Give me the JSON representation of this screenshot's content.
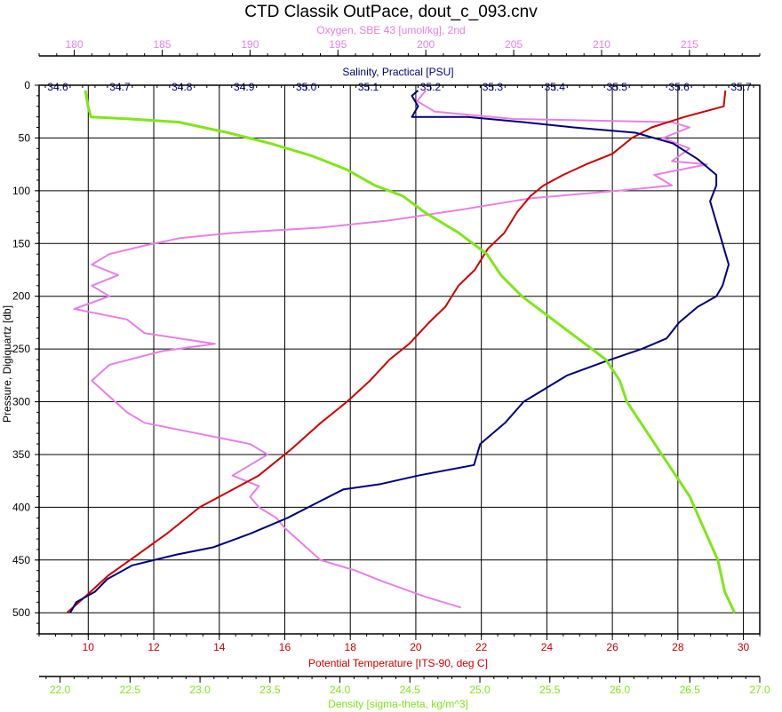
{
  "chart_data": {
    "type": "line",
    "title": "CTD Classik OutPace, dout_c_093.cnv",
    "grid": true,
    "y_axis": {
      "label": "Pressure, Digiquartz [db]",
      "range": [
        0,
        520
      ],
      "ticks": [
        "0",
        "50",
        "100",
        "150",
        "200",
        "250",
        "300",
        "350",
        "400",
        "450",
        "500"
      ],
      "inverted": true
    },
    "x_axes": [
      {
        "key": "oxygen",
        "label": "Oxygen, SBE 43 [umol/kg], 2nd",
        "position": "top-outer",
        "color": "#e680e6",
        "range": [
          178,
          219
        ],
        "ticks": [
          "180",
          "185",
          "190",
          "195",
          "200",
          "205",
          "210",
          "215"
        ]
      },
      {
        "key": "salinity",
        "label": "Salinity, Practical [PSU]",
        "position": "top-inner",
        "color": "#00007a",
        "range": [
          34.57,
          35.73
        ],
        "ticks": [
          "34.6",
          "34.7",
          "34.8",
          "34.9",
          "35.0",
          "35.1",
          "35.2",
          "35.3",
          "35.4",
          "35.5",
          "35.6",
          "35.7"
        ]
      },
      {
        "key": "temperature",
        "label": "Potential Temperature [ITS-90, deg C]",
        "position": "bottom-inner",
        "color": "#cc0000",
        "range": [
          8.5,
          30.5
        ],
        "ticks": [
          "10",
          "12",
          "14",
          "16",
          "18",
          "20",
          "22",
          "24",
          "26",
          "28",
          "30"
        ]
      },
      {
        "key": "density",
        "label": "Density [sigma-theta, kg/m^3]",
        "position": "bottom-outer",
        "color": "#80e619",
        "range": [
          21.85,
          27.0
        ],
        "ticks": [
          "22.0",
          "22.5",
          "23.0",
          "23.5",
          "24.0",
          "24.5",
          "25.0",
          "25.5",
          "26.0",
          "26.5",
          "27.0"
        ]
      }
    ],
    "series": [
      {
        "key": "salinity",
        "color": "#00007a",
        "points": [
          [
            35.18,
            5
          ],
          [
            35.17,
            10
          ],
          [
            35.18,
            20
          ],
          [
            35.17,
            30
          ],
          [
            35.26,
            30
          ],
          [
            35.35,
            35
          ],
          [
            35.43,
            40
          ],
          [
            35.53,
            45
          ],
          [
            35.59,
            55
          ],
          [
            35.63,
            70
          ],
          [
            35.66,
            85
          ],
          [
            35.66,
            95
          ],
          [
            35.65,
            110
          ],
          [
            35.66,
            130
          ],
          [
            35.67,
            150
          ],
          [
            35.68,
            170
          ],
          [
            35.67,
            190
          ],
          [
            35.66,
            200
          ],
          [
            35.63,
            210
          ],
          [
            35.6,
            225
          ],
          [
            35.58,
            240
          ],
          [
            35.54,
            250
          ],
          [
            35.48,
            262
          ],
          [
            35.42,
            275
          ],
          [
            35.35,
            300
          ],
          [
            35.32,
            320
          ],
          [
            35.28,
            340
          ],
          [
            35.27,
            360
          ],
          [
            35.18,
            370
          ],
          [
            35.12,
            378
          ],
          [
            35.06,
            383
          ],
          [
            35.02,
            395
          ],
          [
            34.97,
            410
          ],
          [
            34.91,
            425
          ],
          [
            34.85,
            438
          ],
          [
            34.79,
            445
          ],
          [
            34.72,
            455
          ],
          [
            34.68,
            468
          ],
          [
            34.66,
            480
          ],
          [
            34.63,
            490
          ],
          [
            34.62,
            500
          ]
        ]
      },
      {
        "key": "temperature",
        "color": "#cc0000",
        "points": [
          [
            29.45,
            5
          ],
          [
            29.4,
            20
          ],
          [
            28.2,
            30
          ],
          [
            27.2,
            40
          ],
          [
            26.6,
            50
          ],
          [
            26.0,
            65
          ],
          [
            25.2,
            75
          ],
          [
            24.5,
            85
          ],
          [
            23.9,
            95
          ],
          [
            23.5,
            105
          ],
          [
            23.1,
            120
          ],
          [
            22.7,
            140
          ],
          [
            22.2,
            155
          ],
          [
            21.8,
            175
          ],
          [
            21.3,
            190
          ],
          [
            20.9,
            210
          ],
          [
            20.4,
            225
          ],
          [
            19.8,
            245
          ],
          [
            19.2,
            260
          ],
          [
            18.6,
            280
          ],
          [
            17.9,
            300
          ],
          [
            17.1,
            320
          ],
          [
            16.2,
            345
          ],
          [
            15.2,
            370
          ],
          [
            14.3,
            385
          ],
          [
            13.4,
            400
          ],
          [
            12.4,
            425
          ],
          [
            11.5,
            445
          ],
          [
            10.6,
            465
          ],
          [
            9.9,
            485
          ],
          [
            9.35,
            500
          ]
        ]
      },
      {
        "key": "density",
        "color": "#80e619",
        "points": [
          [
            22.18,
            5
          ],
          [
            22.2,
            20
          ],
          [
            22.22,
            30
          ],
          [
            22.5,
            32
          ],
          [
            22.85,
            35
          ],
          [
            23.2,
            45
          ],
          [
            23.5,
            55
          ],
          [
            23.8,
            67
          ],
          [
            24.05,
            80
          ],
          [
            24.25,
            95
          ],
          [
            24.45,
            105
          ],
          [
            24.6,
            120
          ],
          [
            24.85,
            140
          ],
          [
            25.05,
            160
          ],
          [
            25.15,
            180
          ],
          [
            25.3,
            200
          ],
          [
            25.5,
            220
          ],
          [
            25.7,
            240
          ],
          [
            25.9,
            260
          ],
          [
            26.0,
            280
          ],
          [
            26.05,
            300
          ],
          [
            26.2,
            330
          ],
          [
            26.35,
            360
          ],
          [
            26.5,
            390
          ],
          [
            26.6,
            420
          ],
          [
            26.7,
            450
          ],
          [
            26.75,
            480
          ],
          [
            26.82,
            500
          ]
        ]
      },
      {
        "key": "oxygen",
        "color": "#e680e6",
        "points": [
          [
            200,
            5
          ],
          [
            199.5,
            15
          ],
          [
            200.5,
            25
          ],
          [
            205,
            32
          ],
          [
            214,
            35
          ],
          [
            215,
            40
          ],
          [
            213.5,
            50
          ],
          [
            215,
            60
          ],
          [
            214,
            72
          ],
          [
            216,
            75
          ],
          [
            213,
            85
          ],
          [
            214,
            95
          ],
          [
            211,
            100
          ],
          [
            206,
            107
          ],
          [
            202,
            118
          ],
          [
            198,
            128
          ],
          [
            194,
            135
          ],
          [
            189,
            140
          ],
          [
            186,
            145
          ],
          [
            184,
            152
          ],
          [
            182,
            160
          ],
          [
            181,
            170
          ],
          [
            182.5,
            180
          ],
          [
            181,
            190
          ],
          [
            182,
            200
          ],
          [
            180,
            212
          ],
          [
            183,
            222
          ],
          [
            184,
            235
          ],
          [
            188,
            245
          ],
          [
            185,
            252
          ],
          [
            182,
            265
          ],
          [
            181,
            280
          ],
          [
            182,
            295
          ],
          [
            183,
            310
          ],
          [
            184,
            320
          ],
          [
            187,
            330
          ],
          [
            190,
            340
          ],
          [
            191,
            350
          ],
          [
            190,
            360
          ],
          [
            189,
            370
          ],
          [
            190.5,
            380
          ],
          [
            190,
            390
          ],
          [
            190.5,
            400
          ],
          [
            191.5,
            410
          ],
          [
            192,
            420
          ],
          [
            193,
            435
          ],
          [
            194,
            450
          ],
          [
            196,
            460
          ],
          [
            197.5,
            470
          ],
          [
            200,
            485
          ],
          [
            202,
            495
          ]
        ]
      }
    ]
  }
}
